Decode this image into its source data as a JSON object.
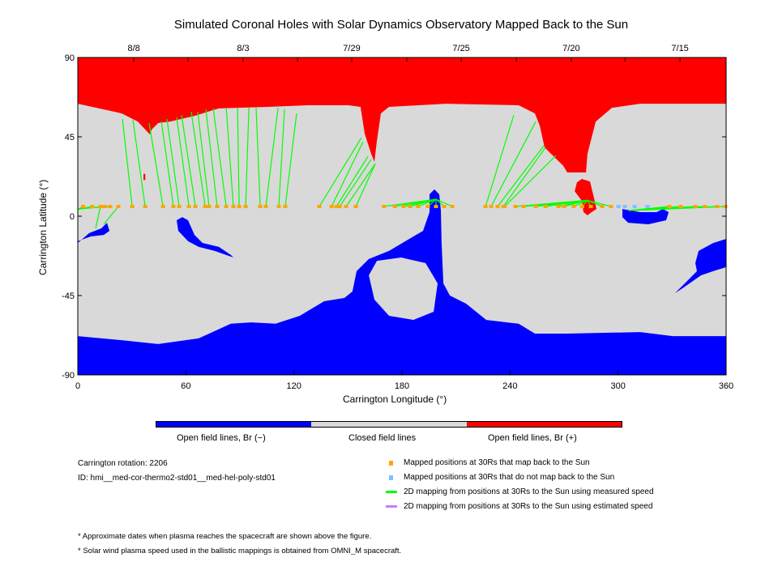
{
  "chart_data": {
    "type": "map",
    "title": "Simulated Coronal Holes with Solar Dynamics Observatory Mapped Back to the Sun",
    "xlabel": "Carrington Longitude (°)",
    "ylabel": "Carrington Latitude (°)",
    "xlim": [
      0,
      360
    ],
    "ylim": [
      -90,
      90
    ],
    "xticks": [
      0,
      60,
      120,
      180,
      240,
      300,
      360
    ],
    "xtick_labels": [
      "0",
      "60",
      "120",
      "180",
      "240",
      "300",
      "360"
    ],
    "yticks": [
      -90,
      -45,
      0,
      45,
      90
    ],
    "ytick_labels": [
      "-90",
      "-45",
      "0",
      "45",
      "90"
    ],
    "top_axis": {
      "tick_lons": [
        31.1,
        61.2,
        91.8,
        122,
        152.1,
        182.7,
        212.9,
        243.5,
        274,
        303.8,
        334.4
      ],
      "labels": [
        {
          "lon": 31.1,
          "text": "8/8"
        },
        {
          "lon": 91.8,
          "text": "8/3"
        },
        {
          "lon": 152.1,
          "text": "7/29"
        },
        {
          "lon": 212.9,
          "text": "7/25"
        },
        {
          "lon": 274,
          "text": "7/20"
        },
        {
          "lon": 334.4,
          "text": "7/15"
        }
      ]
    },
    "colors": {
      "background": "#d9d9d9",
      "negative": "#0000ff",
      "positive": "#ff0000",
      "mapped": "#ffa500",
      "unmapped": "#80c0ff",
      "measured": "#00ff00",
      "estimated": "#c080ff"
    },
    "regions": [
      {
        "name": "north-positive-coronal-hole",
        "polarity": "positive",
        "points": [
          [
            0,
            90
          ],
          [
            0,
            63.8
          ],
          [
            24.3,
            58.3
          ],
          [
            33.3,
            53.7
          ],
          [
            40,
            46.4
          ],
          [
            41,
            49.1
          ],
          [
            44.6,
            52.8
          ],
          [
            51.3,
            53.7
          ],
          [
            64.8,
            56.9
          ],
          [
            78.3,
            61.1
          ],
          [
            105.3,
            62
          ],
          [
            127.8,
            62.9
          ],
          [
            150.3,
            62.9
          ],
          [
            157,
            62
          ],
          [
            159.3,
            46.8
          ],
          [
            162.9,
            35.4
          ],
          [
            164.7,
            30.8
          ],
          [
            166,
            42.2
          ],
          [
            168.3,
            58.3
          ],
          [
            172.8,
            62
          ],
          [
            204.3,
            63.8
          ],
          [
            244.8,
            62.9
          ],
          [
            253.8,
            58.3
          ],
          [
            256.5,
            51.4
          ],
          [
            259.2,
            39
          ],
          [
            269.6,
            28.5
          ],
          [
            271.8,
            24.8
          ],
          [
            282.2,
            24.8
          ],
          [
            283,
            35.4
          ],
          [
            287.6,
            53.7
          ],
          [
            296.6,
            61.5
          ],
          [
            312.3,
            63.8
          ],
          [
            360,
            63.8
          ],
          [
            360,
            90
          ]
        ]
      },
      {
        "name": "positive-spot",
        "polarity": "positive",
        "points": [
          [
            279.9,
            21.1
          ],
          [
            284.4,
            19.7
          ],
          [
            286.7,
            10.1
          ],
          [
            288,
            4.1
          ],
          [
            285.3,
            2.3
          ],
          [
            283,
            0.5
          ],
          [
            280.8,
            2.3
          ],
          [
            279.9,
            8.7
          ],
          [
            275.9,
            14.2
          ],
          [
            277.2,
            19.3
          ]
        ]
      },
      {
        "name": "positive-speck",
        "polarity": "positive",
        "points": [
          [
            36.5,
            24
          ],
          [
            37.5,
            24
          ],
          [
            37.5,
            20.5
          ],
          [
            36.5,
            20.5
          ]
        ]
      },
      {
        "name": "south-negative-coronal-hole",
        "polarity": "negative",
        "points": [
          [
            0,
            -68
          ],
          [
            24.3,
            -70.3
          ],
          [
            44.6,
            -72.5
          ],
          [
            67.1,
            -69.3
          ],
          [
            85,
            -61
          ],
          [
            96.3,
            -60.2
          ],
          [
            109.8,
            -61
          ],
          [
            123.3,
            -56.5
          ],
          [
            136.8,
            -48.2
          ],
          [
            148,
            -46.4
          ],
          [
            152.5,
            -42.7
          ],
          [
            154.8,
            -31.2
          ],
          [
            161.6,
            -24.3
          ],
          [
            172.8,
            -19.7
          ],
          [
            184,
            -12.9
          ],
          [
            191.7,
            -8.3
          ],
          [
            195.3,
            2.3
          ],
          [
            195.3,
            12.4
          ],
          [
            198,
            15.2
          ],
          [
            200.7,
            12.4
          ],
          [
            201.6,
            3.2
          ],
          [
            202,
            -15.2
          ],
          [
            203,
            -38.1
          ],
          [
            206.6,
            -45
          ],
          [
            215.6,
            -49.6
          ],
          [
            226.8,
            -58.8
          ],
          [
            244.8,
            -61
          ],
          [
            253.8,
            -66.6
          ],
          [
            271.8,
            -66.6
          ],
          [
            312.3,
            -65.7
          ],
          [
            330.3,
            -68
          ],
          [
            360,
            -68
          ],
          [
            360,
            -90
          ],
          [
            0,
            -90
          ]
        ]
      },
      {
        "name": "closed-island",
        "polarity": "closed",
        "points": [
          [
            161.6,
            -33.5
          ],
          [
            166.1,
            -25.3
          ],
          [
            179.6,
            -23.4
          ],
          [
            193.1,
            -26.6
          ],
          [
            199.8,
            -38.1
          ],
          [
            197.6,
            -54.2
          ],
          [
            186.3,
            -58.8
          ],
          [
            172.8,
            -56.5
          ],
          [
            164.7,
            -47.3
          ]
        ]
      },
      {
        "name": "left-negative-blob",
        "polarity": "negative",
        "points": [
          [
            0,
            -15.2
          ],
          [
            6.3,
            -9.6
          ],
          [
            13.1,
            -6.9
          ],
          [
            16.2,
            -3.7
          ],
          [
            17.6,
            -8.3
          ],
          [
            14.4,
            -10.6
          ],
          [
            7.2,
            -11.5
          ],
          [
            0,
            -14.2
          ]
        ]
      },
      {
        "name": "mid-negative-tail",
        "polarity": "negative",
        "points": [
          [
            54.9,
            -2.3
          ],
          [
            58,
            -0.5
          ],
          [
            61.2,
            -2.3
          ],
          [
            64.8,
            -10.6
          ],
          [
            69.3,
            -15.2
          ],
          [
            78.3,
            -17.4
          ],
          [
            85,
            -22
          ],
          [
            88.2,
            -25.3
          ],
          [
            86.4,
            -23.4
          ],
          [
            76,
            -19.7
          ],
          [
            67.1,
            -17.4
          ],
          [
            61.2,
            -14.2
          ],
          [
            55.8,
            -8.3
          ]
        ]
      },
      {
        "name": "equator-negative-blob",
        "polarity": "negative",
        "points": [
          [
            302.4,
            4.1
          ],
          [
            312.3,
            2.3
          ],
          [
            321.3,
            2.3
          ],
          [
            324.9,
            4.1
          ],
          [
            328.1,
            2.3
          ],
          [
            326.7,
            -2.3
          ],
          [
            316.8,
            -4.6
          ],
          [
            305.6,
            -3.7
          ],
          [
            302.4,
            -0.5
          ]
        ]
      },
      {
        "name": "right-negative-blob",
        "polarity": "negative",
        "points": [
          [
            360,
            -12.9
          ],
          [
            352.8,
            -15.2
          ],
          [
            344.7,
            -19.7
          ],
          [
            342.9,
            -26.6
          ],
          [
            343.8,
            -31.2
          ],
          [
            339.3,
            -35.8
          ],
          [
            331.6,
            -43.6
          ],
          [
            335.7,
            -40.9
          ],
          [
            346.1,
            -33.5
          ],
          [
            352.8,
            -31.2
          ],
          [
            360,
            -28.9
          ]
        ]
      }
    ],
    "footpoint_lat": 5.5,
    "mappings_measured": [
      [
        30.2,
        24.8,
        55.1
      ],
      [
        37.4,
        30.6,
        54.7
      ],
      [
        47.3,
        39.6,
        52.8
      ],
      [
        53.1,
        46.4,
        53.7
      ],
      [
        56.3,
        49.5,
        55.1
      ],
      [
        61.7,
        54.9,
        56
      ],
      [
        65.3,
        57.6,
        57.4
      ],
      [
        70.7,
        63,
        59.2
      ],
      [
        72.9,
        66.6,
        59.2
      ],
      [
        77.4,
        71.1,
        60.6
      ],
      [
        82.4,
        75.2,
        61.1
      ],
      [
        86.4,
        82.4,
        61.5
      ],
      [
        89.6,
        88.7,
        61.5
      ],
      [
        93.2,
        95,
        61.5
      ],
      [
        101.3,
        99,
        61.5
      ],
      [
        104.4,
        111.2,
        61.5
      ],
      [
        111.6,
        114.8,
        60.6
      ],
      [
        115.2,
        121.5,
        58.3
      ],
      [
        134.1,
        157.5,
        44.5
      ],
      [
        140.9,
        158.4,
        42.2
      ],
      [
        143.6,
        161.1,
        33.9
      ],
      [
        145.4,
        162.9,
        32.1
      ],
      [
        149,
        165.2,
        29.8
      ],
      [
        154.4,
        165.2,
        29.8
      ],
      [
        12.6,
        9.9,
        -6.9
      ],
      [
        22.5,
        14.4,
        -4.6
      ],
      [
        3,
        0,
        3.8
      ],
      [
        8,
        0,
        3.8
      ],
      [
        15,
        0,
        4
      ],
      [
        18,
        0,
        4.2
      ],
      [
        170,
        198.9,
        9.6
      ],
      [
        176,
        198.9,
        9.6
      ],
      [
        180.9,
        198.9,
        9.6
      ],
      [
        184.5,
        198.9,
        9.6
      ],
      [
        189,
        198.9,
        9.6
      ],
      [
        194.4,
        198.9,
        9.6
      ],
      [
        198.9,
        198.9,
        9.6
      ],
      [
        203.4,
        198.9,
        9.6
      ],
      [
        207.9,
        198.9,
        9.6
      ],
      [
        226.4,
        242.1,
        57.4
      ],
      [
        229.5,
        254.3,
        53.7
      ],
      [
        233.1,
        258.8,
        40
      ],
      [
        236.3,
        259.7,
        39
      ],
      [
        237,
        265.5,
        34.4
      ],
      [
        243,
        283,
        9
      ],
      [
        247.5,
        283,
        9
      ],
      [
        254.3,
        283,
        9
      ],
      [
        259.7,
        283,
        9
      ],
      [
        266.9,
        283,
        9
      ],
      [
        270,
        283,
        9
      ],
      [
        275.4,
        283,
        9
      ],
      [
        280,
        283,
        9
      ],
      [
        284.9,
        283,
        9
      ],
      [
        291.2,
        283,
        9
      ],
      [
        296.1,
        283,
        9
      ],
      [
        328.5,
        306,
        3.2
      ],
      [
        334.8,
        306,
        3.2
      ],
      [
        342.9,
        306,
        3.2
      ],
      [
        348.3,
        306,
        3.2
      ],
      [
        355,
        306,
        3.2
      ],
      [
        359.5,
        306,
        3.2
      ]
    ],
    "unmapped_footpoints": [
      300.2,
      303.8,
      309.2,
      316.4
    ]
  },
  "colorbar": {
    "labels": [
      "Open field lines, Br (−)",
      "Closed field lines",
      "Open field lines, Br (+)"
    ]
  },
  "info": {
    "rotation": "Carrington rotation: 2206",
    "id": "ID: hmi__med-cor-thermo2-std01__med-hel-poly-std01"
  },
  "legend": [
    {
      "kind": "mapped",
      "label": "Mapped positions at 30Rs that map back to the Sun"
    },
    {
      "kind": "unmapped",
      "label": "Mapped positions at 30Rs that do not map back to the Sun"
    },
    {
      "kind": "measured",
      "label": "2D mapping from positions at 30Rs to the Sun using measured speed"
    },
    {
      "kind": "estimated",
      "label": "2D mapping from positions at 30Rs to the Sun using estimated speed"
    }
  ],
  "notes": [
    "* Approximate dates when plasma reaches the spacecraft are shown above the figure.",
    "* Solar wind plasma speed used in the ballistic mappings is obtained from OMNI_M spacecraft."
  ]
}
